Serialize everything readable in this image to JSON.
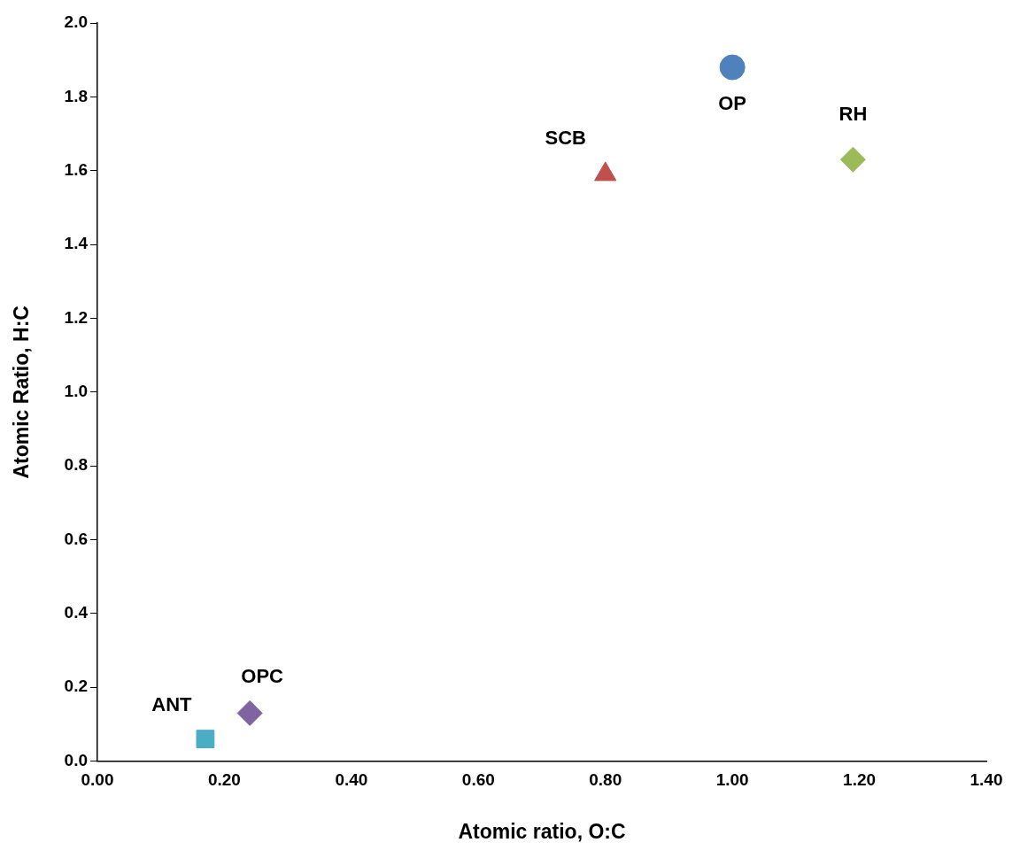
{
  "chart_data": {
    "type": "scatter",
    "xlabel": "Atomic ratio, O:C",
    "ylabel": "Atomic Ratio, H:C",
    "xlim": [
      0,
      1.4
    ],
    "xticks": [
      {
        "value": 0,
        "label": "0.00"
      },
      {
        "value": 0.2,
        "label": "0.20"
      },
      {
        "value": 0.4,
        "label": "0.40"
      },
      {
        "value": 0.6,
        "label": "0.60"
      },
      {
        "value": 0.8,
        "label": "0.80"
      },
      {
        "value": 1.0,
        "label": "1.00"
      },
      {
        "value": 1.2,
        "label": "1.20"
      },
      {
        "value": 1.4,
        "label": "1.40"
      }
    ],
    "ylim": [
      0,
      2
    ],
    "yticks": [
      {
        "value": 0,
        "label": "0.0"
      },
      {
        "value": 0.2,
        "label": "0.2"
      },
      {
        "value": 0.4,
        "label": "0.4"
      },
      {
        "value": 0.6,
        "label": "0.6"
      },
      {
        "value": 0.8,
        "label": "0.8"
      },
      {
        "value": 1.0,
        "label": "1.0"
      },
      {
        "value": 1.2,
        "label": "1.2"
      },
      {
        "value": 1.4,
        "label": "1.4"
      },
      {
        "value": 1.6,
        "label": "1.6"
      },
      {
        "value": 1.8,
        "label": "1.8"
      },
      {
        "value": 2.0,
        "label": "2.0"
      }
    ],
    "grid": false,
    "legend": false,
    "series": [
      {
        "name": "OP",
        "color": "#4f81bd",
        "marker": "circle",
        "x": [
          1.0
        ],
        "values": [
          1.88
        ]
      },
      {
        "name": "SCB",
        "color": "#c0504d",
        "marker": "triangle",
        "x": [
          0.8
        ],
        "values": [
          1.59
        ]
      },
      {
        "name": "RH",
        "color": "#9bbb59",
        "marker": "diamond",
        "x": [
          1.19
        ],
        "values": [
          1.63
        ]
      },
      {
        "name": "ANT",
        "color": "#4bacc6",
        "marker": "square",
        "x": [
          0.17
        ],
        "values": [
          0.06
        ]
      },
      {
        "name": "OPC",
        "color": "#8064a2",
        "marker": "diamond",
        "x": [
          0.24
        ],
        "values": [
          0.13
        ]
      }
    ]
  }
}
